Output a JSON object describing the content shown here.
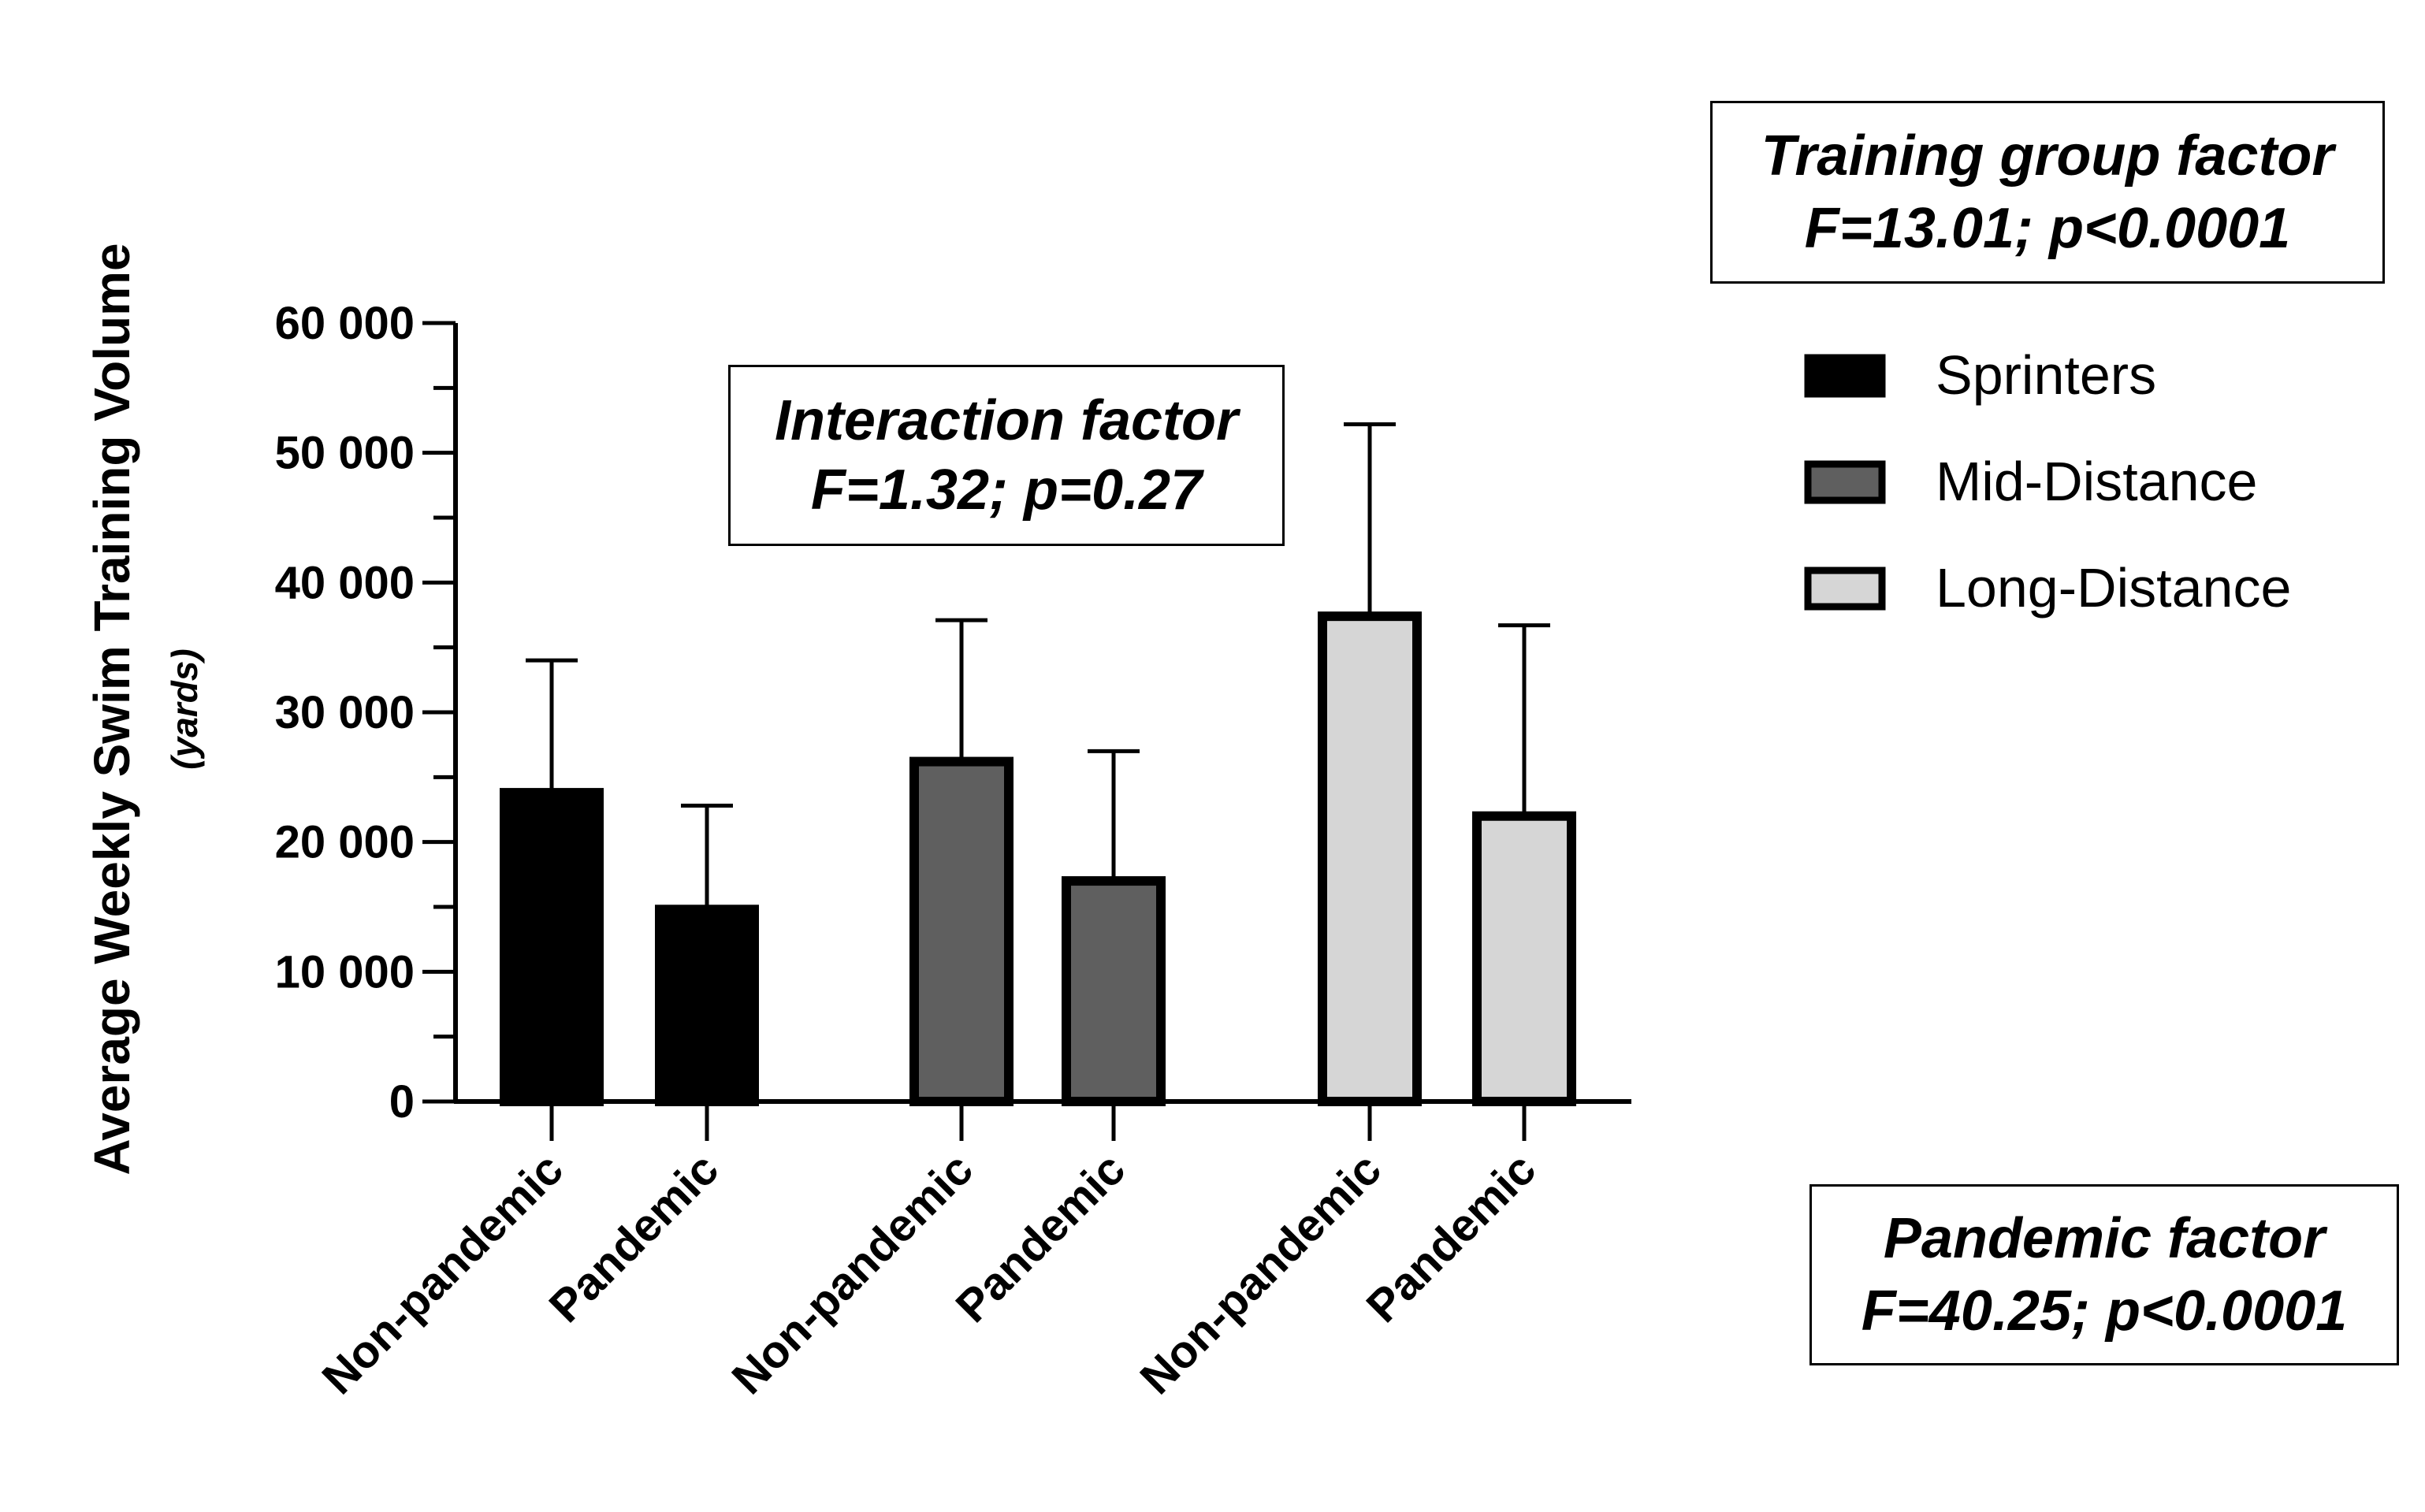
{
  "chart_data": {
    "type": "bar",
    "ylabel": "Average Weekly Swim Training Volume",
    "yunit": "(yards)",
    "ylim": [
      0,
      60000
    ],
    "yticks": [
      {
        "value": 0,
        "label": "0"
      },
      {
        "value": 10000,
        "label": "10 000"
      },
      {
        "value": 20000,
        "label": "20 000"
      },
      {
        "value": 30000,
        "label": "30 000"
      },
      {
        "value": 40000,
        "label": "40 000"
      },
      {
        "value": 50000,
        "label": "50 000"
      },
      {
        "value": 60000,
        "label": "60 000"
      }
    ],
    "yminor_step": 5000,
    "groups": [
      "Sprinters",
      "Mid-Distance",
      "Long-Distance"
    ],
    "group_colors": [
      "#000000",
      "#5f5f5f",
      "#d6d6d6"
    ],
    "bars": [
      {
        "group": "Sprinters",
        "category": "Non-pandemic",
        "value": 23800,
        "error": 10200
      },
      {
        "group": "Sprinters",
        "category": "Pandemic",
        "value": 14800,
        "error": 8000
      },
      {
        "group": "Mid-Distance",
        "category": "Non-pandemic",
        "value": 26200,
        "error": 10900
      },
      {
        "group": "Mid-Distance",
        "category": "Pandemic",
        "value": 17000,
        "error": 10000
      },
      {
        "group": "Long-Distance",
        "category": "Non-pandemic",
        "value": 37400,
        "error": 14800
      },
      {
        "group": "Long-Distance",
        "category": "Pandemic",
        "value": 22000,
        "error": 14700
      }
    ],
    "legend": {
      "position": "right",
      "entries": [
        "Sprinters",
        "Mid-Distance",
        "Long-Distance"
      ]
    },
    "annotations": {
      "interaction": {
        "title": "Interaction factor",
        "stat": "F=1.32; p=0.27"
      },
      "training_group": {
        "title": "Training group factor",
        "stat": "F=13.01; p<0.0001"
      },
      "pandemic": {
        "title": "Pandemic factor",
        "stat": "F=40.25; p<0.0001"
      }
    }
  }
}
